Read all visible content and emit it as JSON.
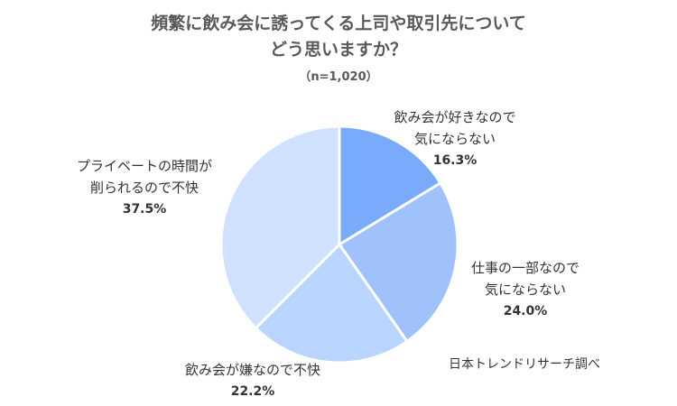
{
  "title_line1": "頻繁に飲み会に誘ってくる上司や取引先について",
  "title_line2": "どう思いますか？",
  "subtitle": "（n=1,020）",
  "source": "日本トレンドリサーチ調べ",
  "chart_data": {
    "type": "pie",
    "slices": [
      {
        "line1": "飲み会が好きなので",
        "line2": "気にならない",
        "pct": "16.3%",
        "value": 16.3,
        "color": "#7aabfb"
      },
      {
        "line1": "仕事の一部なので",
        "line2": "気にならない",
        "pct": "24.0%",
        "value": 24.0,
        "color": "#9fc2fc"
      },
      {
        "line1": "飲み会が嫌なので不快",
        "line2": "",
        "pct": "22.2%",
        "value": 22.2,
        "color": "#b9d4fd"
      },
      {
        "line1": "プライベートの時間が",
        "line2": "削られるので不快",
        "pct": "37.5%",
        "value": 37.5,
        "color": "#cfe1fe"
      }
    ],
    "legend": "none"
  }
}
